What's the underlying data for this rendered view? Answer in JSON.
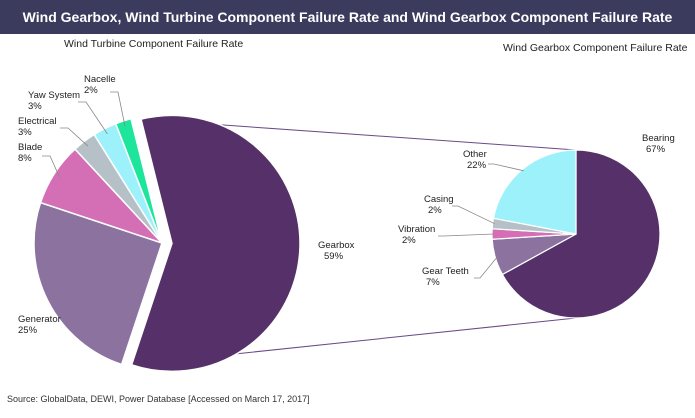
{
  "header": {
    "title": "Wind Gearbox, Wind Turbine Component Failure Rate and Wind Gearbox Component Failure Rate"
  },
  "footer": {
    "source": "Source: GlobalData, DEWI, Power Database [Accessed on March 17, 2017]"
  },
  "chart_data": [
    {
      "type": "pie",
      "title": "Wind Turbine Component Failure Rate",
      "slices": [
        {
          "label": "Gearbox",
          "value": 59,
          "pct": "59%",
          "color": "#563169"
        },
        {
          "label": "Generator",
          "value": 25,
          "pct": "25%",
          "color": "#8b729f"
        },
        {
          "label": "Blade",
          "value": 8,
          "pct": "8%",
          "color": "#d46fb6"
        },
        {
          "label": "Electrical",
          "value": 3,
          "pct": "3%",
          "color": "#b6c0c7"
        },
        {
          "label": "Yaw System",
          "value": 3,
          "pct": "3%",
          "color": "#9cf1fb"
        },
        {
          "label": "Nacelle",
          "value": 2,
          "pct": "2%",
          "color": "#1ee59c"
        }
      ]
    },
    {
      "type": "pie",
      "title": "Wind Gearbox Component Failure Rate",
      "slices": [
        {
          "label": "Bearing",
          "value": 67,
          "pct": "67%",
          "color": "#563169"
        },
        {
          "label": "Gear Teeth",
          "value": 7,
          "pct": "7%",
          "color": "#8b729f"
        },
        {
          "label": "Vibration",
          "value": 2,
          "pct": "2%",
          "color": "#d46fb6"
        },
        {
          "label": "Casing",
          "value": 2,
          "pct": "2%",
          "color": "#b6c0c7"
        },
        {
          "label": "Other",
          "value": 22,
          "pct": "22%",
          "color": "#9cf1fb"
        }
      ]
    }
  ]
}
